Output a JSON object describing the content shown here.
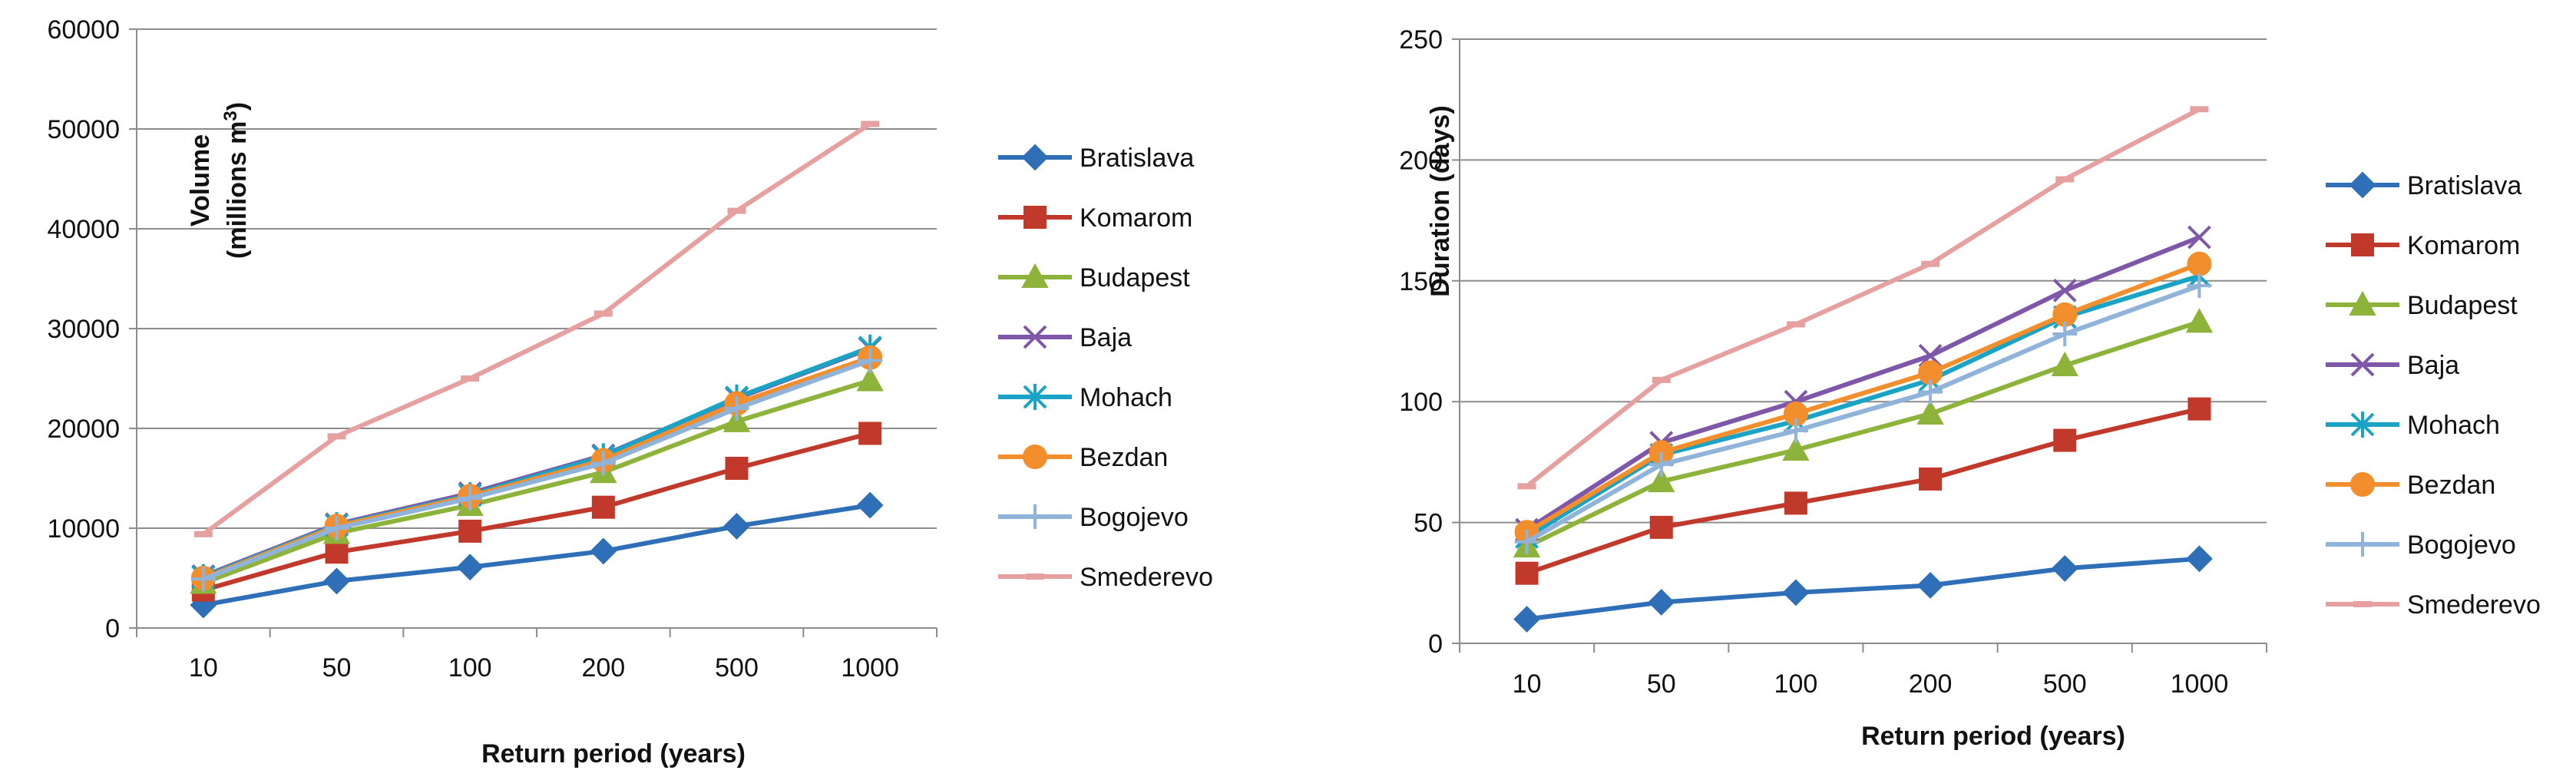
{
  "chart_data": [
    {
      "type": "line",
      "title": "",
      "xlabel": "Return period (years)",
      "ylabel": "Volume",
      "ylabel_line2": "(millions m",
      "ylabel_sup": "3",
      "ylabel_close": ")",
      "categories": [
        "10",
        "50",
        "100",
        "200",
        "500",
        "1000"
      ],
      "ylim": [
        0,
        60000
      ],
      "yticks": [
        "0",
        "10000",
        "20000",
        "30000",
        "40000",
        "50000",
        "60000"
      ],
      "grid": true,
      "legend": "right",
      "series": [
        {
          "name": "Bratislava",
          "color": "#2e6fb7",
          "marker": "diamond",
          "values": [
            2300,
            4700,
            6100,
            7700,
            10200,
            12300
          ]
        },
        {
          "name": "Komarom",
          "color": "#c0392b",
          "marker": "square",
          "values": [
            3800,
            7600,
            9700,
            12100,
            16000,
            19500
          ]
        },
        {
          "name": "Budapest",
          "color": "#8db33a",
          "marker": "triangle",
          "values": [
            4500,
            9500,
            12300,
            15600,
            20700,
            24800
          ]
        },
        {
          "name": "Baja",
          "color": "#7e57a8",
          "marker": "x",
          "values": [
            5200,
            10400,
            13500,
            17300,
            23000,
            28000
          ]
        },
        {
          "name": "Mohach",
          "color": "#1aa3c4",
          "marker": "asterisk",
          "values": [
            5100,
            10300,
            13300,
            17200,
            23100,
            28100
          ]
        },
        {
          "name": "Bezdan",
          "color": "#f28e2b",
          "marker": "circle",
          "values": [
            5000,
            10200,
            13200,
            16800,
            22500,
            27100
          ]
        },
        {
          "name": "Bogojevo",
          "color": "#8fb3d9",
          "marker": "plus",
          "values": [
            4900,
            10000,
            13000,
            16500,
            22000,
            26800
          ]
        },
        {
          "name": "Smederevo",
          "color": "#e6a0a0",
          "marker": "dash",
          "values": [
            9400,
            19200,
            25000,
            31500,
            41800,
            50500
          ]
        }
      ]
    },
    {
      "type": "line",
      "title": "",
      "xlabel": "Return period (years)",
      "ylabel": "Duration (days)",
      "categories": [
        "10",
        "50",
        "100",
        "200",
        "500",
        "1000"
      ],
      "ylim": [
        0,
        250
      ],
      "yticks": [
        "0",
        "50",
        "100",
        "150",
        "200",
        "250"
      ],
      "grid": true,
      "legend": "right",
      "series": [
        {
          "name": "Bratislava",
          "color": "#2e6fb7",
          "marker": "diamond",
          "values": [
            10,
            17,
            21,
            24,
            31,
            35
          ]
        },
        {
          "name": "Komarom",
          "color": "#c0392b",
          "marker": "square",
          "values": [
            29,
            48,
            58,
            68,
            84,
            97
          ]
        },
        {
          "name": "Budapest",
          "color": "#8db33a",
          "marker": "triangle",
          "values": [
            40,
            67,
            80,
            95,
            115,
            133
          ]
        },
        {
          "name": "Baja",
          "color": "#7e57a8",
          "marker": "x",
          "values": [
            47,
            83,
            100,
            119,
            146,
            168
          ]
        },
        {
          "name": "Mohach",
          "color": "#1aa3c4",
          "marker": "asterisk",
          "values": [
            44,
            78,
            92,
            109,
            135,
            152
          ]
        },
        {
          "name": "Bezdan",
          "color": "#f28e2b",
          "marker": "circle",
          "values": [
            46,
            79,
            95,
            112,
            136,
            157
          ]
        },
        {
          "name": "Bogojevo",
          "color": "#8fb3d9",
          "marker": "plus",
          "values": [
            42,
            74,
            88,
            104,
            128,
            148
          ]
        },
        {
          "name": "Smederevo",
          "color": "#e6a0a0",
          "marker": "dash",
          "values": [
            65,
            109,
            132,
            157,
            192,
            221
          ]
        }
      ]
    }
  ]
}
